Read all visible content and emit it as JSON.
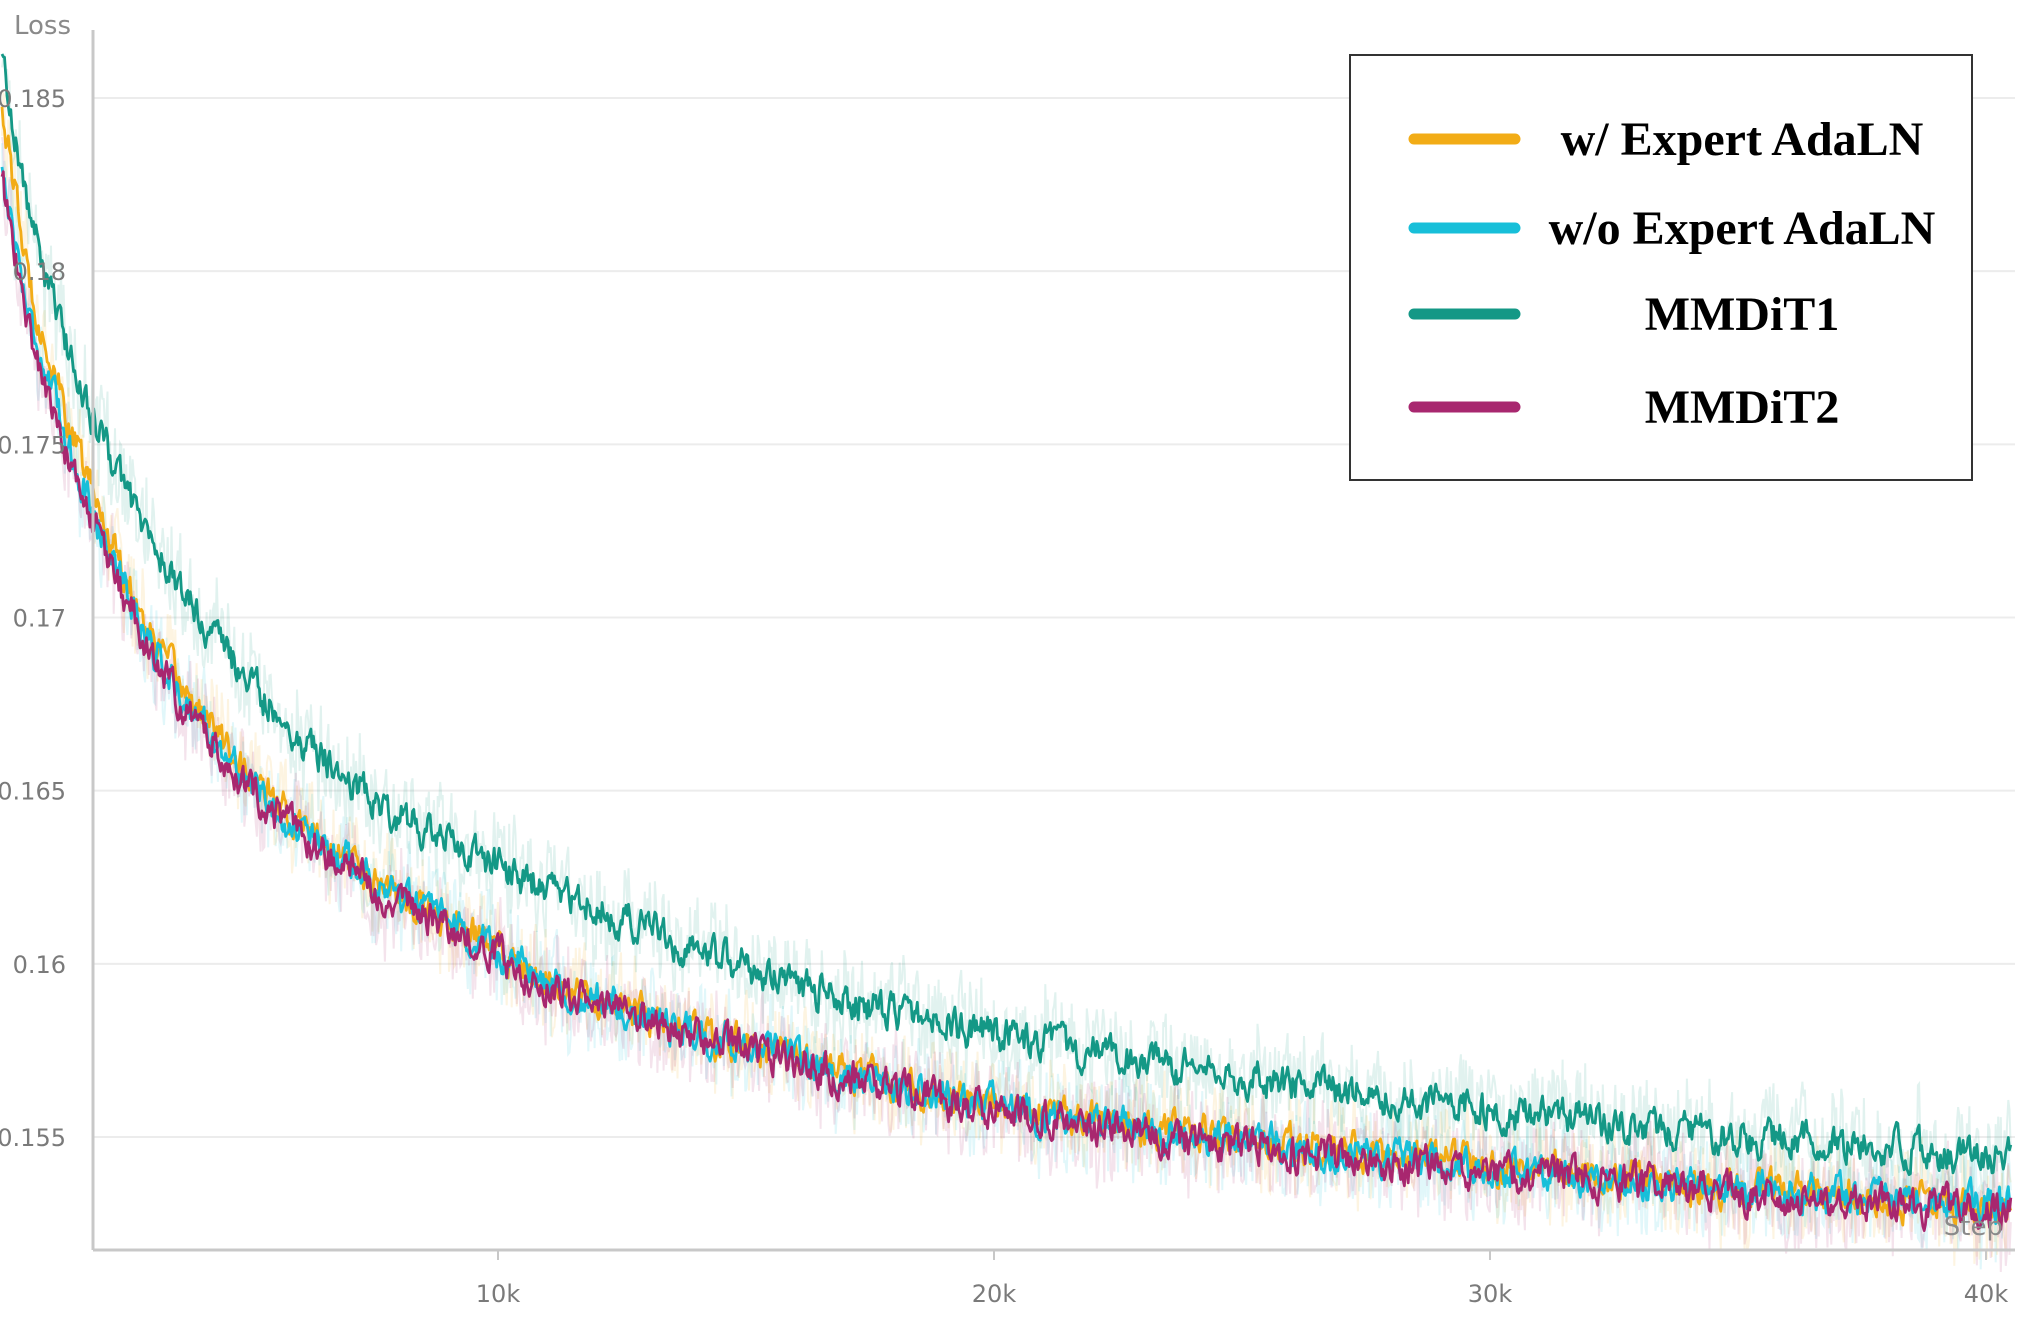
{
  "chart_data": {
    "type": "line",
    "ylabel": "Loss",
    "xlabel": "Step",
    "xlim": [
      0,
      40500
    ],
    "ylim": [
      0.1518,
      0.1872
    ],
    "grid": true,
    "legend_placement": "top-right",
    "x_ticks": [
      {
        "value": 10000,
        "label": "10k"
      },
      {
        "value": 20000,
        "label": "20k"
      },
      {
        "value": 30000,
        "label": "30k"
      },
      {
        "value": 40000,
        "label": "40k"
      }
    ],
    "y_ticks": [
      {
        "value": 0.155,
        "label": "0.155"
      },
      {
        "value": 0.16,
        "label": "0.16"
      },
      {
        "value": 0.165,
        "label": "0.165"
      },
      {
        "value": 0.17,
        "label": "0.17"
      },
      {
        "value": 0.175,
        "label": "0.175"
      },
      {
        "value": 0.18,
        "label": "0.18"
      },
      {
        "value": 0.185,
        "label": "0.185"
      }
    ],
    "series": [
      {
        "name": "w/ Expert AdaLN",
        "color": "#f2ac16",
        "points": [
          [
            0,
            0.1848
          ],
          [
            500,
            0.18
          ],
          [
            1000,
            0.1772
          ],
          [
            1500,
            0.1749
          ],
          [
            2000,
            0.173
          ],
          [
            2500,
            0.1712
          ],
          [
            3000,
            0.1695
          ],
          [
            3500,
            0.1683
          ],
          [
            4000,
            0.1673
          ],
          [
            4500,
            0.1663
          ],
          [
            5000,
            0.1654
          ],
          [
            5500,
            0.1646
          ],
          [
            6000,
            0.164
          ],
          [
            7000,
            0.163
          ],
          [
            8000,
            0.1621
          ],
          [
            9000,
            0.1612
          ],
          [
            10000,
            0.1604
          ],
          [
            11000,
            0.1596
          ],
          [
            12000,
            0.159
          ],
          [
            14000,
            0.158
          ],
          [
            16000,
            0.1573
          ],
          [
            18000,
            0.1565
          ],
          [
            20000,
            0.156
          ],
          [
            22000,
            0.1555
          ],
          [
            24000,
            0.1551
          ],
          [
            26000,
            0.1548
          ],
          [
            28000,
            0.1544
          ],
          [
            30000,
            0.1542
          ],
          [
            32000,
            0.1539
          ],
          [
            34000,
            0.1536
          ],
          [
            36000,
            0.1535
          ],
          [
            38000,
            0.1532
          ],
          [
            40000,
            0.153
          ],
          [
            40500,
            0.153
          ]
        ]
      },
      {
        "name": "w/o Expert AdaLN",
        "color": "#17bfd9",
        "points": [
          [
            0,
            0.183
          ],
          [
            500,
            0.179
          ],
          [
            1000,
            0.1765
          ],
          [
            1500,
            0.1743
          ],
          [
            2000,
            0.1725
          ],
          [
            2500,
            0.1708
          ],
          [
            3000,
            0.1692
          ],
          [
            3500,
            0.168
          ],
          [
            4000,
            0.167
          ],
          [
            4500,
            0.166
          ],
          [
            5000,
            0.1652
          ],
          [
            5500,
            0.1645
          ],
          [
            6000,
            0.1638
          ],
          [
            7000,
            0.1629
          ],
          [
            8000,
            0.162
          ],
          [
            9000,
            0.1611
          ],
          [
            10000,
            0.1603
          ],
          [
            11000,
            0.1595
          ],
          [
            12000,
            0.1589
          ],
          [
            14000,
            0.158
          ],
          [
            16000,
            0.1572
          ],
          [
            18000,
            0.1565
          ],
          [
            20000,
            0.1559
          ],
          [
            22000,
            0.1554
          ],
          [
            24000,
            0.155
          ],
          [
            26000,
            0.1547
          ],
          [
            28000,
            0.1544
          ],
          [
            30000,
            0.1541
          ],
          [
            32000,
            0.1538
          ],
          [
            34000,
            0.1536
          ],
          [
            36000,
            0.1534
          ],
          [
            38000,
            0.1532
          ],
          [
            40000,
            0.153
          ],
          [
            40500,
            0.153
          ]
        ]
      },
      {
        "name": "MMDiT1",
        "color": "#149886",
        "points": [
          [
            0,
            0.1862
          ],
          [
            500,
            0.182
          ],
          [
            1000,
            0.1792
          ],
          [
            1500,
            0.177
          ],
          [
            2000,
            0.1752
          ],
          [
            2500,
            0.1737
          ],
          [
            3000,
            0.1722
          ],
          [
            3500,
            0.171
          ],
          [
            4000,
            0.17
          ],
          [
            4500,
            0.169
          ],
          [
            5000,
            0.1681
          ],
          [
            5500,
            0.1673
          ],
          [
            6000,
            0.1665
          ],
          [
            7000,
            0.1653
          ],
          [
            8000,
            0.1643
          ],
          [
            9000,
            0.1635
          ],
          [
            10000,
            0.1628
          ],
          [
            11000,
            0.1622
          ],
          [
            12000,
            0.1616
          ],
          [
            14000,
            0.1604
          ],
          [
            16000,
            0.1594
          ],
          [
            18000,
            0.1586
          ],
          [
            20000,
            0.158
          ],
          [
            22000,
            0.1574
          ],
          [
            24000,
            0.1569
          ],
          [
            26000,
            0.1565
          ],
          [
            28000,
            0.1561
          ],
          [
            30000,
            0.1558
          ],
          [
            32000,
            0.1555
          ],
          [
            34000,
            0.1552
          ],
          [
            36000,
            0.1549
          ],
          [
            38000,
            0.1547
          ],
          [
            40000,
            0.1545
          ],
          [
            40500,
            0.1545
          ]
        ]
      },
      {
        "name": "MMDiT2",
        "color": "#a8276f",
        "points": [
          [
            0,
            0.1826
          ],
          [
            500,
            0.1786
          ],
          [
            1000,
            0.176
          ],
          [
            1500,
            0.1739
          ],
          [
            2000,
            0.1721
          ],
          [
            2500,
            0.1705
          ],
          [
            3000,
            0.169
          ],
          [
            3500,
            0.1678
          ],
          [
            4000,
            0.1668
          ],
          [
            4500,
            0.1659
          ],
          [
            5000,
            0.1651
          ],
          [
            5500,
            0.1644
          ],
          [
            6000,
            0.1637
          ],
          [
            7000,
            0.1627
          ],
          [
            8000,
            0.1618
          ],
          [
            9000,
            0.161
          ],
          [
            10000,
            0.1602
          ],
          [
            11000,
            0.1594
          ],
          [
            12000,
            0.1588
          ],
          [
            14000,
            0.1579
          ],
          [
            16000,
            0.1571
          ],
          [
            18000,
            0.1564
          ],
          [
            20000,
            0.1558
          ],
          [
            22000,
            0.1553
          ],
          [
            24000,
            0.1549
          ],
          [
            26000,
            0.1546
          ],
          [
            28000,
            0.1543
          ],
          [
            30000,
            0.154
          ],
          [
            32000,
            0.1538
          ],
          [
            34000,
            0.1535
          ],
          [
            36000,
            0.1533
          ],
          [
            38000,
            0.1531
          ],
          [
            40000,
            0.1529
          ],
          [
            40500,
            0.1529
          ]
        ]
      }
    ]
  }
}
